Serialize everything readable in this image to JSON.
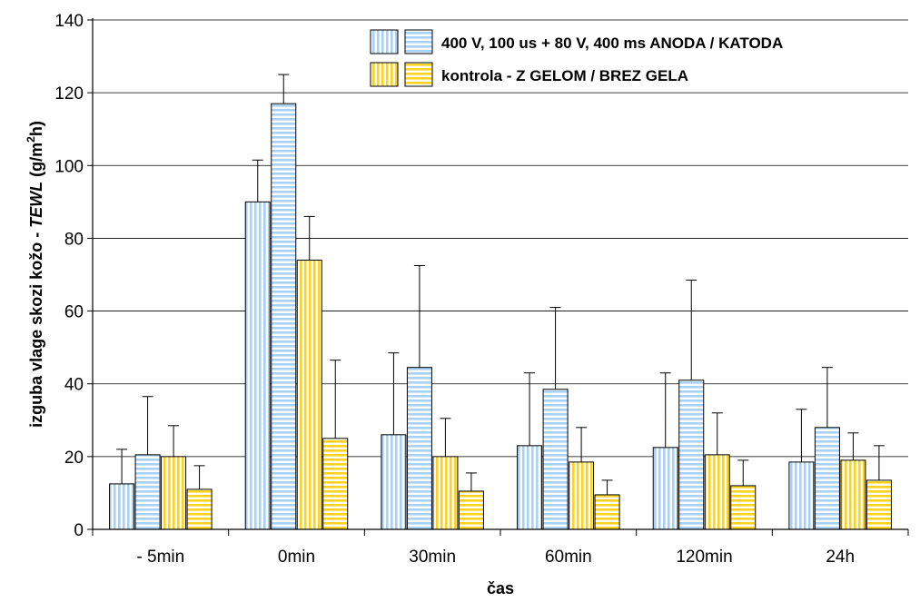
{
  "chart_data": {
    "type": "bar",
    "categories": [
      "- 5min",
      "0min",
      "30min",
      "60min",
      "120min",
      "24h"
    ],
    "series": [
      {
        "name": "400 V, 100 us + 80 V, 400 ms ANODA",
        "values": [
          12.5,
          90,
          26,
          23,
          22.5,
          18.5
        ],
        "errors": [
          9.5,
          11.5,
          22.5,
          20,
          20.5,
          14.5
        ],
        "color": "#a9d0f5",
        "pattern": "vertical-stripes"
      },
      {
        "name": "KATODA",
        "values": [
          20.5,
          117,
          44.5,
          38.5,
          41,
          28
        ],
        "errors": [
          16,
          8,
          28,
          22.5,
          27.5,
          16.5
        ],
        "color": "#a9d0f5",
        "pattern": "horizontal-stripes"
      },
      {
        "name": "kontrola - Z GELOM",
        "values": [
          20,
          74,
          20,
          18.5,
          20.5,
          19
        ],
        "errors": [
          8.5,
          12,
          10.5,
          9.5,
          11.5,
          7.5
        ],
        "color": "#ffd21c",
        "pattern": "vertical-stripes"
      },
      {
        "name": "BREZ GELA",
        "values": [
          11,
          25,
          10.5,
          9.5,
          12,
          13.5
        ],
        "errors": [
          6.5,
          21.5,
          5,
          4,
          7,
          9.5
        ],
        "color": "#ffd21c",
        "pattern": "horizontal-stripes"
      }
    ],
    "legend": [
      "400 V, 100 us + 80 V, 400 ms ANODA / KATODA",
      "kontrola - Z GELOM / BREZ GELA"
    ],
    "legend_position": "top-right",
    "xlabel": "čas",
    "ylabel_main": "izguba vlage skozi kožo - ",
    "ylabel_italic": "TEWL",
    "ylabel_unit_pre": "  (g/m",
    "ylabel_unit_sup": "2",
    "ylabel_unit_post": "h)",
    "ylim": [
      0,
      140
    ],
    "yticks": [
      0,
      20,
      40,
      60,
      80,
      100,
      120,
      140
    ],
    "grid": true
  }
}
